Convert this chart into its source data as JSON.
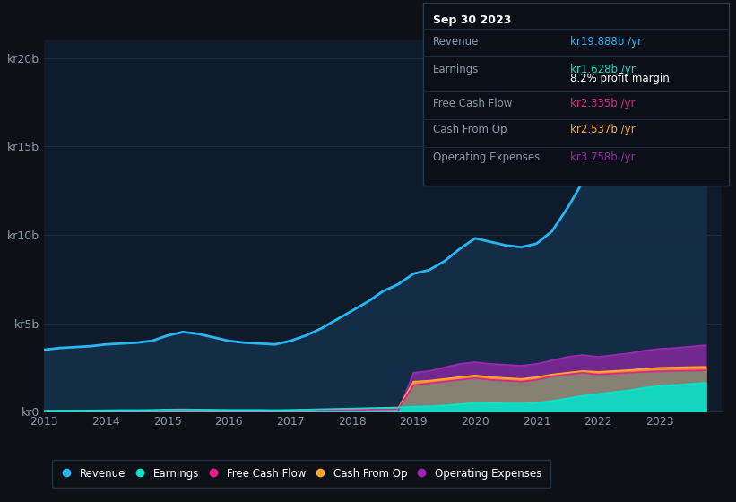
{
  "background_color": "#0d1117",
  "plot_bg_color": "#0d1b2a",
  "years": [
    2013,
    2013.25,
    2013.5,
    2013.75,
    2014,
    2014.25,
    2014.5,
    2014.75,
    2015,
    2015.25,
    2015.5,
    2015.75,
    2016,
    2016.25,
    2016.5,
    2016.75,
    2017,
    2017.25,
    2017.5,
    2017.75,
    2018,
    2018.25,
    2018.5,
    2018.75,
    2019,
    2019.25,
    2019.5,
    2019.75,
    2020,
    2020.25,
    2020.5,
    2020.75,
    2021,
    2021.25,
    2021.5,
    2021.75,
    2022,
    2022.25,
    2022.5,
    2022.75,
    2023,
    2023.25,
    2023.5,
    2023.75
  ],
  "revenue": [
    3.5,
    3.6,
    3.65,
    3.7,
    3.8,
    3.85,
    3.9,
    4.0,
    4.3,
    4.5,
    4.4,
    4.2,
    4.0,
    3.9,
    3.85,
    3.8,
    4.0,
    4.3,
    4.7,
    5.2,
    5.7,
    6.2,
    6.8,
    7.2,
    7.8,
    8.0,
    8.5,
    9.2,
    9.8,
    9.6,
    9.4,
    9.3,
    9.5,
    10.2,
    11.5,
    13.0,
    14.0,
    14.8,
    16.0,
    17.5,
    18.5,
    19.0,
    19.5,
    19.888
  ],
  "earnings": [
    0.05,
    0.06,
    0.06,
    0.07,
    0.08,
    0.09,
    0.09,
    0.1,
    0.12,
    0.13,
    0.12,
    0.11,
    0.1,
    0.1,
    0.1,
    0.09,
    0.1,
    0.12,
    0.14,
    0.16,
    0.18,
    0.2,
    0.22,
    0.24,
    0.28,
    0.3,
    0.35,
    0.42,
    0.5,
    0.48,
    0.47,
    0.46,
    0.5,
    0.6,
    0.75,
    0.9,
    1.0,
    1.1,
    1.2,
    1.35,
    1.45,
    1.5,
    1.57,
    1.628
  ],
  "free_cash_flow": [
    0.03,
    0.03,
    0.04,
    0.04,
    0.05,
    0.05,
    0.05,
    0.06,
    0.07,
    0.07,
    0.06,
    0.06,
    0.05,
    0.05,
    0.05,
    0.05,
    0.06,
    0.07,
    0.08,
    0.09,
    0.1,
    0.11,
    0.13,
    0.14,
    1.5,
    1.6,
    1.7,
    1.8,
    1.9,
    1.8,
    1.75,
    1.7,
    1.8,
    2.0,
    2.1,
    2.2,
    2.1,
    2.15,
    2.2,
    2.25,
    2.28,
    2.3,
    2.32,
    2.335
  ],
  "cash_from_op": [
    0.04,
    0.04,
    0.05,
    0.05,
    0.06,
    0.06,
    0.06,
    0.07,
    0.08,
    0.09,
    0.08,
    0.07,
    0.07,
    0.06,
    0.06,
    0.06,
    0.07,
    0.08,
    0.1,
    0.11,
    0.12,
    0.14,
    0.16,
    0.18,
    1.7,
    1.75,
    1.85,
    1.95,
    2.05,
    1.95,
    1.9,
    1.85,
    1.95,
    2.1,
    2.2,
    2.3,
    2.25,
    2.3,
    2.35,
    2.42,
    2.48,
    2.5,
    2.52,
    2.537
  ],
  "op_expenses": [
    0.0,
    0.0,
    0.0,
    0.0,
    0.0,
    0.0,
    0.0,
    0.0,
    0.0,
    0.0,
    0.0,
    0.0,
    0.0,
    0.0,
    0.0,
    0.0,
    0.0,
    0.0,
    0.0,
    0.0,
    0.0,
    0.0,
    0.0,
    0.0,
    2.2,
    2.3,
    2.5,
    2.7,
    2.8,
    2.7,
    2.65,
    2.6,
    2.7,
    2.9,
    3.1,
    3.2,
    3.1,
    3.2,
    3.3,
    3.45,
    3.55,
    3.6,
    3.68,
    3.758
  ],
  "revenue_color": "#29b6f6",
  "earnings_color": "#00e5cc",
  "free_cash_flow_color": "#e91e8c",
  "cash_from_op_color": "#ffa726",
  "op_expenses_color": "#9c27b0",
  "revenue_fill": "#1a4a6e",
  "fcf_fill": "#607d8b",
  "grid_color": "#1e2d3d",
  "text_color": "#8899aa",
  "white_color": "#ffffff",
  "ylim": [
    0,
    21
  ],
  "yticks": [
    0,
    5,
    10,
    15,
    20
  ],
  "ytick_labels": [
    "kr0",
    "kr5b",
    "kr10b",
    "kr15b",
    "kr20b"
  ],
  "xlabel_ticks": [
    2013,
    2014,
    2015,
    2016,
    2017,
    2018,
    2019,
    2020,
    2021,
    2022,
    2023
  ],
  "legend_labels": [
    "Revenue",
    "Earnings",
    "Free Cash Flow",
    "Cash From Op",
    "Operating Expenses"
  ],
  "tooltip_date": "Sep 30 2023",
  "tooltip_revenue": "kr19.888b",
  "tooltip_earnings": "kr1.628b",
  "tooltip_profit_margin": "8.2%",
  "tooltip_fcf": "kr2.335b",
  "tooltip_cashop": "kr2.537b",
  "tooltip_opex": "kr3.758b"
}
